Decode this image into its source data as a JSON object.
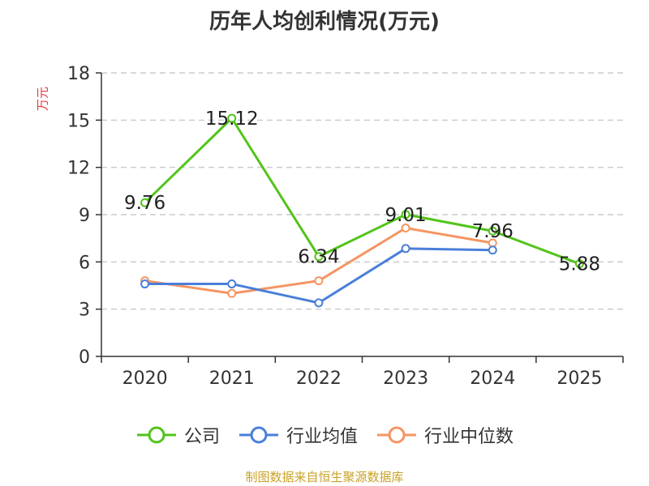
{
  "chart_data": {
    "type": "line",
    "title": "历年人均创利情况(万元)",
    "ylabel": "万元",
    "xlabel": "",
    "categories": [
      "2020",
      "2021",
      "2022",
      "2023",
      "2024",
      "2025"
    ],
    "ylim": [
      0,
      18
    ],
    "yticks": [
      0,
      3,
      6,
      9,
      12,
      15,
      18
    ],
    "grid": true,
    "legend_position": "bottom",
    "series": [
      {
        "name": "公司",
        "color": "#52c41a",
        "values": [
          9.76,
          15.12,
          6.34,
          9.01,
          7.96,
          5.88
        ],
        "labels": [
          "9.76",
          "15.12",
          "6.34",
          "9.01",
          "7.96",
          "5.88"
        ]
      },
      {
        "name": "行业均值",
        "color": "#4a7fd9",
        "values": [
          4.6,
          4.6,
          3.4,
          6.85,
          6.75,
          null
        ]
      },
      {
        "name": "行业中位数",
        "color": "#f59562",
        "values": [
          4.8,
          4.0,
          4.8,
          8.15,
          7.2,
          null
        ]
      }
    ]
  },
  "source": "制图数据来自恒生聚源数据库"
}
